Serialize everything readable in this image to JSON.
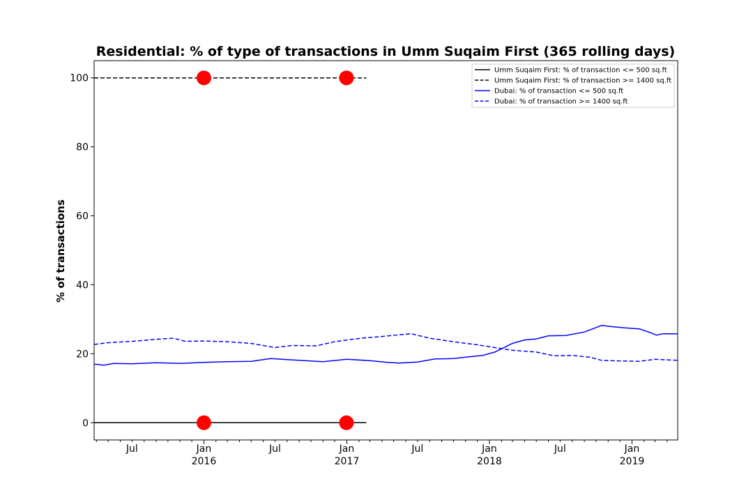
{
  "chart_data": {
    "type": "line",
    "title": "Residential: % of type of transactions in Umm Suqaim First (365 rolling days)",
    "xlabel": "",
    "ylabel": "% of transactions",
    "x_axis": {
      "kind": "date",
      "range": [
        "2015-03-26",
        "2019-04-28"
      ],
      "major_ticks": [
        {
          "date": "2016-01-01",
          "label": "Jan",
          "year": "2016"
        },
        {
          "date": "2017-01-01",
          "label": "Jan",
          "year": "2017"
        },
        {
          "date": "2018-01-01",
          "label": "Jan",
          "year": "2018"
        },
        {
          "date": "2019-01-01",
          "label": "Jan",
          "year": "2019"
        }
      ],
      "mid_ticks": [
        {
          "date": "2015-07-01",
          "label": "Jul"
        },
        {
          "date": "2016-07-01",
          "label": "Jul"
        },
        {
          "date": "2017-07-01",
          "label": "Jul"
        },
        {
          "date": "2018-07-01",
          "label": "Jul"
        }
      ],
      "minor_ticks": [
        "2015-04-01",
        "2015-05-01",
        "2015-06-01",
        "2015-08-01",
        "2015-09-01",
        "2015-10-01",
        "2015-11-01",
        "2015-12-01",
        "2016-02-01",
        "2016-03-01",
        "2016-04-01",
        "2016-05-01",
        "2016-06-01",
        "2016-08-01",
        "2016-09-01",
        "2016-10-01",
        "2016-11-01",
        "2016-12-01",
        "2017-02-01",
        "2017-03-01",
        "2017-04-01",
        "2017-05-01",
        "2017-06-01",
        "2017-08-01",
        "2017-09-01",
        "2017-10-01",
        "2017-11-01",
        "2017-12-01",
        "2018-02-01",
        "2018-03-01",
        "2018-04-01",
        "2018-05-01",
        "2018-06-01",
        "2018-08-01",
        "2018-09-01",
        "2018-10-01",
        "2018-11-01",
        "2018-12-01",
        "2019-02-01",
        "2019-03-01",
        "2019-04-01"
      ]
    },
    "y_axis": {
      "range": [
        -5,
        105
      ],
      "ticks": [
        0,
        20,
        40,
        60,
        80,
        100
      ]
    },
    "grid": false,
    "legend_position": "top-right",
    "series": [
      {
        "name": "Umm Suqaim First: % of transaction <= 500 sq.ft",
        "color": "#000000",
        "style": "solid",
        "points": [
          [
            "2015-03-26",
            0
          ],
          [
            "2017-02-20",
            0
          ]
        ]
      },
      {
        "name": "Umm Suqaim First: % of transaction >= 1400 sq.ft",
        "color": "#000000",
        "style": "dashed",
        "points": [
          [
            "2015-03-26",
            100
          ],
          [
            "2017-02-20",
            100
          ]
        ]
      },
      {
        "name": "Dubai: % of transaction <= 500 sq.ft",
        "color": "#0000ff",
        "style": "solid",
        "points": [
          [
            "2015-03-26",
            17.0
          ],
          [
            "2015-04-20",
            16.7
          ],
          [
            "2015-05-15",
            17.2
          ],
          [
            "2015-07-01",
            17.1
          ],
          [
            "2015-09-01",
            17.4
          ],
          [
            "2015-11-01",
            17.2
          ],
          [
            "2016-01-01",
            17.5
          ],
          [
            "2016-03-01",
            17.7
          ],
          [
            "2016-05-01",
            17.8
          ],
          [
            "2016-06-20",
            18.6
          ],
          [
            "2016-08-01",
            18.3
          ],
          [
            "2016-10-01",
            17.9
          ],
          [
            "2016-11-01",
            17.7
          ],
          [
            "2017-01-01",
            18.4
          ],
          [
            "2017-03-01",
            18.0
          ],
          [
            "2017-04-15",
            17.5
          ],
          [
            "2017-05-15",
            17.3
          ],
          [
            "2017-07-01",
            17.6
          ],
          [
            "2017-08-15",
            18.5
          ],
          [
            "2017-10-01",
            18.6
          ],
          [
            "2017-11-01",
            19.0
          ],
          [
            "2017-12-15",
            19.5
          ],
          [
            "2018-01-15",
            20.5
          ],
          [
            "2018-03-01",
            23.0
          ],
          [
            "2018-04-01",
            24.0
          ],
          [
            "2018-05-01",
            24.3
          ],
          [
            "2018-06-01",
            25.2
          ],
          [
            "2018-07-15",
            25.3
          ],
          [
            "2018-09-01",
            26.3
          ],
          [
            "2018-10-15",
            28.2
          ],
          [
            "2018-11-15",
            27.8
          ],
          [
            "2018-12-15",
            27.5
          ],
          [
            "2019-01-20",
            27.2
          ],
          [
            "2019-02-20",
            26.0
          ],
          [
            "2019-03-05",
            25.4
          ],
          [
            "2019-03-20",
            25.8
          ],
          [
            "2019-04-28",
            25.8
          ]
        ]
      },
      {
        "name": "Dubai: % of transaction >= 1400 sq.ft",
        "color": "#0000ff",
        "style": "dashed",
        "points": [
          [
            "2015-03-26",
            22.7
          ],
          [
            "2015-05-01",
            23.2
          ],
          [
            "2015-07-01",
            23.6
          ],
          [
            "2015-09-01",
            24.2
          ],
          [
            "2015-10-15",
            24.5
          ],
          [
            "2015-11-15",
            23.6
          ],
          [
            "2016-01-01",
            23.7
          ],
          [
            "2016-03-01",
            23.5
          ],
          [
            "2016-05-01",
            23.0
          ],
          [
            "2016-07-01",
            21.8
          ],
          [
            "2016-08-15",
            22.4
          ],
          [
            "2016-10-15",
            22.3
          ],
          [
            "2016-12-01",
            23.5
          ],
          [
            "2017-01-01",
            24.0
          ],
          [
            "2017-02-15",
            24.6
          ],
          [
            "2017-04-01",
            25.0
          ],
          [
            "2017-05-15",
            25.5
          ],
          [
            "2017-06-15",
            25.8
          ],
          [
            "2017-08-01",
            24.5
          ],
          [
            "2017-10-01",
            23.5
          ],
          [
            "2017-12-01",
            22.6
          ],
          [
            "2018-01-15",
            21.8
          ],
          [
            "2018-03-01",
            21.0
          ],
          [
            "2018-05-01",
            20.5
          ],
          [
            "2018-06-15",
            19.4
          ],
          [
            "2018-08-01",
            19.5
          ],
          [
            "2018-09-15",
            19.0
          ],
          [
            "2018-10-15",
            18.1
          ],
          [
            "2018-12-01",
            17.9
          ],
          [
            "2019-01-20",
            17.8
          ],
          [
            "2019-03-01",
            18.4
          ],
          [
            "2019-04-28",
            18.1
          ]
        ]
      }
    ],
    "markers": {
      "color": "#ff0000",
      "points": [
        [
          "2016-01-01",
          100
        ],
        [
          "2016-12-31",
          100
        ],
        [
          "2016-01-01",
          0
        ],
        [
          "2016-12-31",
          0
        ]
      ]
    }
  }
}
